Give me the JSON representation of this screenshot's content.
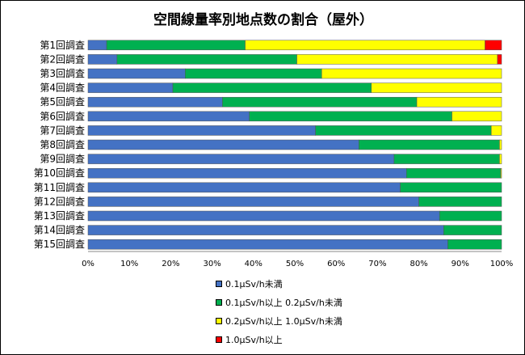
{
  "chart_data": {
    "type": "bar",
    "orientation": "horizontal",
    "stacked": "percent",
    "title": "空間線量率別地点数の割合（屋外）",
    "categories": [
      "第1回調査",
      "第2回調査",
      "第3回調査",
      "第4回調査",
      "第5回調査",
      "第6回調査",
      "第7回調査",
      "第8回調査",
      "第9回調査",
      "第10回調査",
      "第11回調査",
      "第12回調査",
      "第13回調査",
      "第14回調査",
      "第15回調査"
    ],
    "series": [
      {
        "name": "0.1μSv/h未満",
        "color": "#4472C4",
        "values": [
          4.5,
          7.0,
          23.5,
          20.5,
          32.5,
          39.0,
          55.0,
          65.5,
          74.0,
          77.0,
          75.5,
          80.0,
          85.0,
          86.0,
          87.0
        ]
      },
      {
        "name": "0.1μSv/h以上 0.2μSv/h未満",
        "color": "#00B050",
        "values": [
          33.5,
          43.5,
          33.0,
          48.0,
          47.0,
          49.0,
          42.5,
          34.0,
          25.5,
          22.8,
          24.5,
          20.0,
          15.0,
          14.0,
          13.0
        ]
      },
      {
        "name": "0.2μSv/h以上 1.0μSv/h未満",
        "color": "#FFFF00",
        "values": [
          58.0,
          48.5,
          43.5,
          31.5,
          20.5,
          12.0,
          2.5,
          0.5,
          0.5,
          0.2,
          0,
          0,
          0,
          0,
          0
        ]
      },
      {
        "name": "1.0μSv/h以上",
        "color": "#FF0000",
        "values": [
          4.0,
          1.0,
          0,
          0,
          0,
          0,
          0,
          0,
          0,
          0,
          0,
          0,
          0,
          0,
          0
        ]
      }
    ],
    "xlim": [
      0,
      100
    ],
    "xticks": [
      "0%",
      "10%",
      "20%",
      "30%",
      "40%",
      "50%",
      "60%",
      "70%",
      "80%",
      "90%",
      "100%"
    ],
    "xlabel": "",
    "ylabel": "",
    "grid": false,
    "legend_position": "bottom"
  }
}
